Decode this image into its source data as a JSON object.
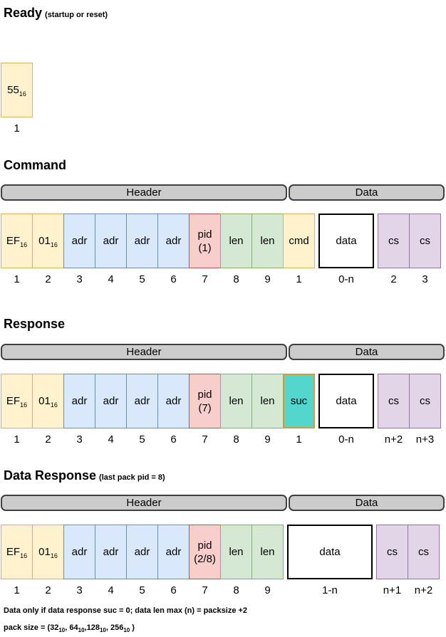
{
  "palette": {
    "yellow": {
      "fill": "#FFF2CC",
      "border": "#D6B656"
    },
    "blue": {
      "fill": "#DAE8FC",
      "border": "#6C8EBF"
    },
    "red": {
      "fill": "#F8CECC",
      "border": "#B85450"
    },
    "green": {
      "fill": "#D5E8D4",
      "border": "#82B366"
    },
    "purple": {
      "fill": "#E1D5E7",
      "border": "#9673A6"
    },
    "teal": {
      "fill": "#52D6CE",
      "border": "#C9A13B"
    },
    "white": {
      "fill": "#FFFFFF",
      "border": "#000000"
    },
    "bar": {
      "fill": "#CCCCCC",
      "border": "#3F3F3F"
    }
  },
  "sections": [
    {
      "id": "ready",
      "title": "Ready",
      "note": "(startup or reset)",
      "cells": [
        {
          "name": "55",
          "label": "55",
          "sub": "16",
          "color": "yellow",
          "index": "1"
        }
      ]
    },
    {
      "id": "command",
      "title": "Command",
      "note": "",
      "bars": {
        "header": "Header",
        "data": "Data"
      },
      "cells": [
        {
          "name": "ef",
          "label": "EF",
          "sub": "16",
          "color": "yellow",
          "index": "1"
        },
        {
          "name": "01",
          "label": "01",
          "sub": "16",
          "color": "yellow",
          "index": "2"
        },
        {
          "name": "adr-1",
          "label": "adr",
          "color": "blue",
          "index": "3"
        },
        {
          "name": "adr-2",
          "label": "adr",
          "color": "blue",
          "index": "4"
        },
        {
          "name": "adr-3",
          "label": "adr",
          "color": "blue",
          "index": "5"
        },
        {
          "name": "adr-4",
          "label": "adr",
          "color": "blue",
          "index": "6"
        },
        {
          "name": "pid",
          "label": "pid",
          "line2": "(1)",
          "color": "red",
          "index": "7"
        },
        {
          "name": "len-1",
          "label": "len",
          "color": "green",
          "index": "8"
        },
        {
          "name": "len-2",
          "label": "len",
          "color": "green",
          "index": "9"
        },
        {
          "name": "cmd",
          "label": "cmd",
          "color": "yellow",
          "index": "1"
        },
        {
          "name": "data",
          "label": "data",
          "color": "white",
          "index": "0-n",
          "wide": "wide"
        },
        {
          "name": "cs-1",
          "label": "cs",
          "color": "purple",
          "index": "2"
        },
        {
          "name": "cs-2",
          "label": "cs",
          "color": "purple",
          "index": "3"
        }
      ]
    },
    {
      "id": "response",
      "title": "Response",
      "note": "",
      "bars": {
        "header": "Header",
        "data": "Data"
      },
      "cells": [
        {
          "name": "ef",
          "label": "EF",
          "sub": "16",
          "color": "yellow",
          "index": "1"
        },
        {
          "name": "01",
          "label": "01",
          "sub": "16",
          "color": "yellow",
          "index": "2"
        },
        {
          "name": "adr-1",
          "label": "adr",
          "color": "blue",
          "index": "3"
        },
        {
          "name": "adr-2",
          "label": "adr",
          "color": "blue",
          "index": "4"
        },
        {
          "name": "adr-3",
          "label": "adr",
          "color": "blue",
          "index": "5"
        },
        {
          "name": "adr-4",
          "label": "adr",
          "color": "blue",
          "index": "6"
        },
        {
          "name": "pid",
          "label": "pid",
          "line2": "(7)",
          "color": "red",
          "index": "7"
        },
        {
          "name": "len-1",
          "label": "len",
          "color": "green",
          "index": "8"
        },
        {
          "name": "len-2",
          "label": "len",
          "color": "green",
          "index": "9"
        },
        {
          "name": "suc",
          "label": "suc",
          "color": "teal",
          "index": "1"
        },
        {
          "name": "data",
          "label": "data",
          "color": "white",
          "index": "0-n",
          "wide": "wide"
        },
        {
          "name": "cs-1",
          "label": "cs",
          "color": "purple",
          "index": "n+2"
        },
        {
          "name": "cs-2",
          "label": "cs",
          "color": "purple",
          "index": "n+3"
        }
      ]
    },
    {
      "id": "data-response",
      "title": "Data Response",
      "note": "(last pack pid = 8)",
      "bars": {
        "header": "Header",
        "data": "Data"
      },
      "cells": [
        {
          "name": "ef",
          "label": "EF",
          "sub": "16",
          "color": "yellow",
          "index": "1"
        },
        {
          "name": "01",
          "label": "01",
          "sub": "16",
          "color": "yellow",
          "index": "2"
        },
        {
          "name": "adr-1",
          "label": "adr",
          "color": "blue",
          "index": "3"
        },
        {
          "name": "adr-2",
          "label": "adr",
          "color": "blue",
          "index": "4"
        },
        {
          "name": "adr-3",
          "label": "adr",
          "color": "blue",
          "index": "5"
        },
        {
          "name": "adr-4",
          "label": "adr",
          "color": "blue",
          "index": "6"
        },
        {
          "name": "pid",
          "label": "pid",
          "line2": "(2/8)",
          "color": "red",
          "index": "7"
        },
        {
          "name": "len-1",
          "label": "len",
          "color": "green",
          "index": "8"
        },
        {
          "name": "len-2",
          "label": "len",
          "color": "green",
          "index": "9"
        },
        {
          "name": "data",
          "label": "data",
          "color": "white",
          "index": "1-n",
          "wide": "wide2"
        },
        {
          "name": "cs-1",
          "label": "cs",
          "color": "purple",
          "index": "n+1"
        },
        {
          "name": "cs-2",
          "label": "cs",
          "color": "purple",
          "index": "n+2"
        }
      ]
    }
  ],
  "footer": {
    "line1": "Data only if data response suc = 0; data len max (n) = packsize +2",
    "line2_parts": [
      {
        "text": "pack size = (32"
      },
      {
        "text": "10",
        "sub": true
      },
      {
        "text": ", 64"
      },
      {
        "text": "10",
        "sub": true
      },
      {
        "text": ",128"
      },
      {
        "text": "10",
        "sub": true
      },
      {
        "text": ", 256"
      },
      {
        "text": "10",
        "sub": true
      },
      {
        "text": " )"
      }
    ]
  }
}
